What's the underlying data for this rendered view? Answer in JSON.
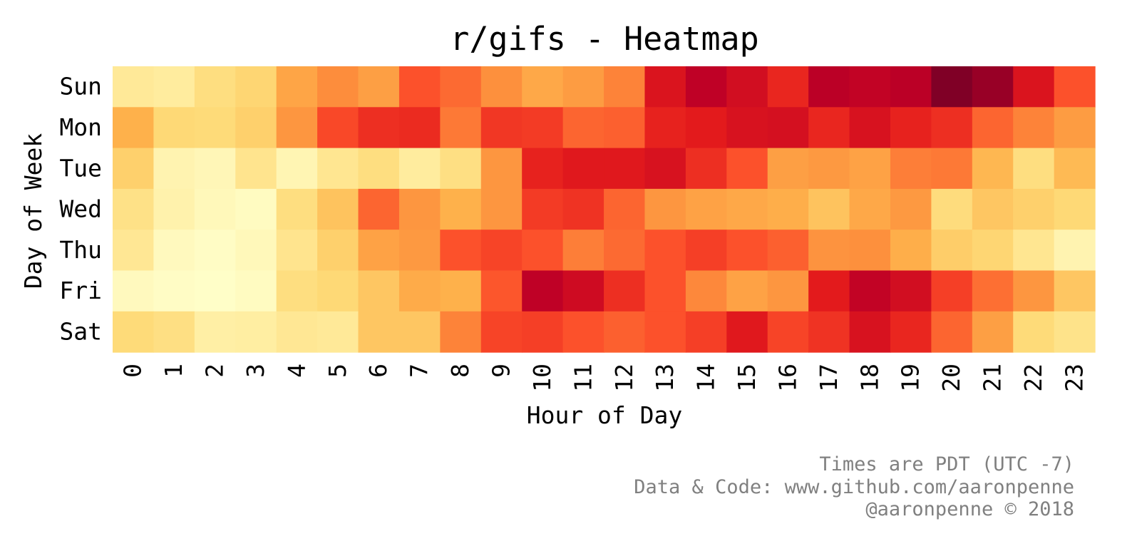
{
  "chart_data": {
    "type": "heatmap",
    "title": "r/gifs - Heatmap",
    "xlabel": "Hour of Day",
    "ylabel": "Day of Week",
    "x": [
      "0",
      "1",
      "2",
      "3",
      "4",
      "5",
      "6",
      "7",
      "8",
      "9",
      "10",
      "11",
      "12",
      "13",
      "14",
      "15",
      "16",
      "17",
      "18",
      "19",
      "20",
      "21",
      "22",
      "23"
    ],
    "y": [
      "Sun",
      "Mon",
      "Tue",
      "Wed",
      "Thu",
      "Fri",
      "Sat"
    ],
    "colormap": "YlOrRd",
    "value_scale": "relative intensity 0-1 (no colorbar shown)",
    "values": [
      [
        0.15,
        0.13,
        0.22,
        0.26,
        0.42,
        0.5,
        0.44,
        0.62,
        0.57,
        0.49,
        0.41,
        0.45,
        0.52,
        0.78,
        0.87,
        0.81,
        0.72,
        0.88,
        0.86,
        0.88,
        1.0,
        0.95,
        0.78,
        0.62
      ],
      [
        0.38,
        0.25,
        0.24,
        0.28,
        0.47,
        0.64,
        0.7,
        0.71,
        0.54,
        0.68,
        0.67,
        0.58,
        0.59,
        0.73,
        0.75,
        0.79,
        0.8,
        0.72,
        0.79,
        0.73,
        0.7,
        0.58,
        0.52,
        0.45
      ],
      [
        0.28,
        0.08,
        0.06,
        0.18,
        0.07,
        0.17,
        0.22,
        0.13,
        0.21,
        0.47,
        0.73,
        0.76,
        0.76,
        0.79,
        0.7,
        0.62,
        0.44,
        0.46,
        0.43,
        0.53,
        0.54,
        0.36,
        0.22,
        0.35
      ],
      [
        0.2,
        0.09,
        0.05,
        0.03,
        0.22,
        0.32,
        0.58,
        0.47,
        0.38,
        0.47,
        0.67,
        0.69,
        0.58,
        0.47,
        0.43,
        0.41,
        0.39,
        0.32,
        0.41,
        0.46,
        0.23,
        0.31,
        0.28,
        0.25
      ],
      [
        0.16,
        0.04,
        0.02,
        0.05,
        0.18,
        0.28,
        0.43,
        0.46,
        0.62,
        0.65,
        0.62,
        0.53,
        0.57,
        0.62,
        0.66,
        0.62,
        0.59,
        0.48,
        0.49,
        0.39,
        0.29,
        0.26,
        0.17,
        0.08
      ],
      [
        0.04,
        0.02,
        0.01,
        0.03,
        0.22,
        0.25,
        0.31,
        0.4,
        0.38,
        0.61,
        0.87,
        0.82,
        0.7,
        0.62,
        0.51,
        0.43,
        0.47,
        0.75,
        0.86,
        0.81,
        0.66,
        0.56,
        0.47,
        0.31
      ],
      [
        0.24,
        0.21,
        0.11,
        0.12,
        0.16,
        0.15,
        0.31,
        0.31,
        0.52,
        0.65,
        0.66,
        0.62,
        0.59,
        0.62,
        0.66,
        0.76,
        0.65,
        0.69,
        0.79,
        0.72,
        0.58,
        0.44,
        0.24,
        0.19
      ]
    ]
  },
  "credits": {
    "line1": "Times are PDT (UTC -7)",
    "line2": "Data & Code: www.github.com/aaronpenne",
    "line3": "@aaronpenne © 2018"
  }
}
